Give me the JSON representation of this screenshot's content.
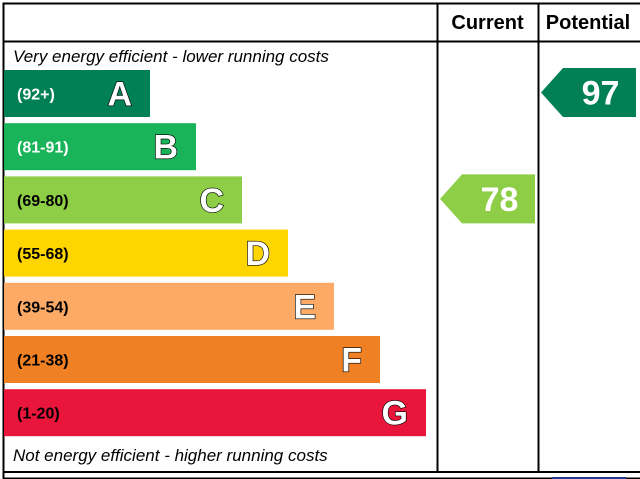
{
  "chart_data": {
    "type": "bar",
    "columns": {
      "current": "Current",
      "potential": "Potential"
    },
    "top_note": "Very energy efficient - lower running costs",
    "bottom_note": "Not energy efficient - higher running costs",
    "bands": [
      {
        "letter": "A",
        "range": "(92+)",
        "color": "#008054",
        "text_color": "#ffffff",
        "letter_color": "#ffffff"
      },
      {
        "letter": "B",
        "range": "(81-91)",
        "color": "#19b459",
        "text_color": "#ffffff",
        "letter_color": "#ffffff"
      },
      {
        "letter": "C",
        "range": "(69-80)",
        "color": "#8dce46",
        "text_color": "#000000",
        "letter_color": "#ffffff"
      },
      {
        "letter": "D",
        "range": "(55-68)",
        "color": "#ffd500",
        "text_color": "#000000",
        "letter_color": "#ffffff"
      },
      {
        "letter": "E",
        "range": "(39-54)",
        "color": "#fcaa65",
        "text_color": "#000000",
        "letter_color": "#ffffff"
      },
      {
        "letter": "F",
        "range": "(21-38)",
        "color": "#ef8023",
        "text_color": "#000000",
        "letter_color": "#ffffff"
      },
      {
        "letter": "G",
        "range": "(1-20)",
        "color": "#e9153b",
        "text_color": "#000000",
        "letter_color": "#ffffff"
      }
    ],
    "current": {
      "value": 78,
      "band": "C",
      "color": "#8dce46"
    },
    "potential": {
      "value": 97,
      "band": "A",
      "color": "#008054"
    }
  }
}
